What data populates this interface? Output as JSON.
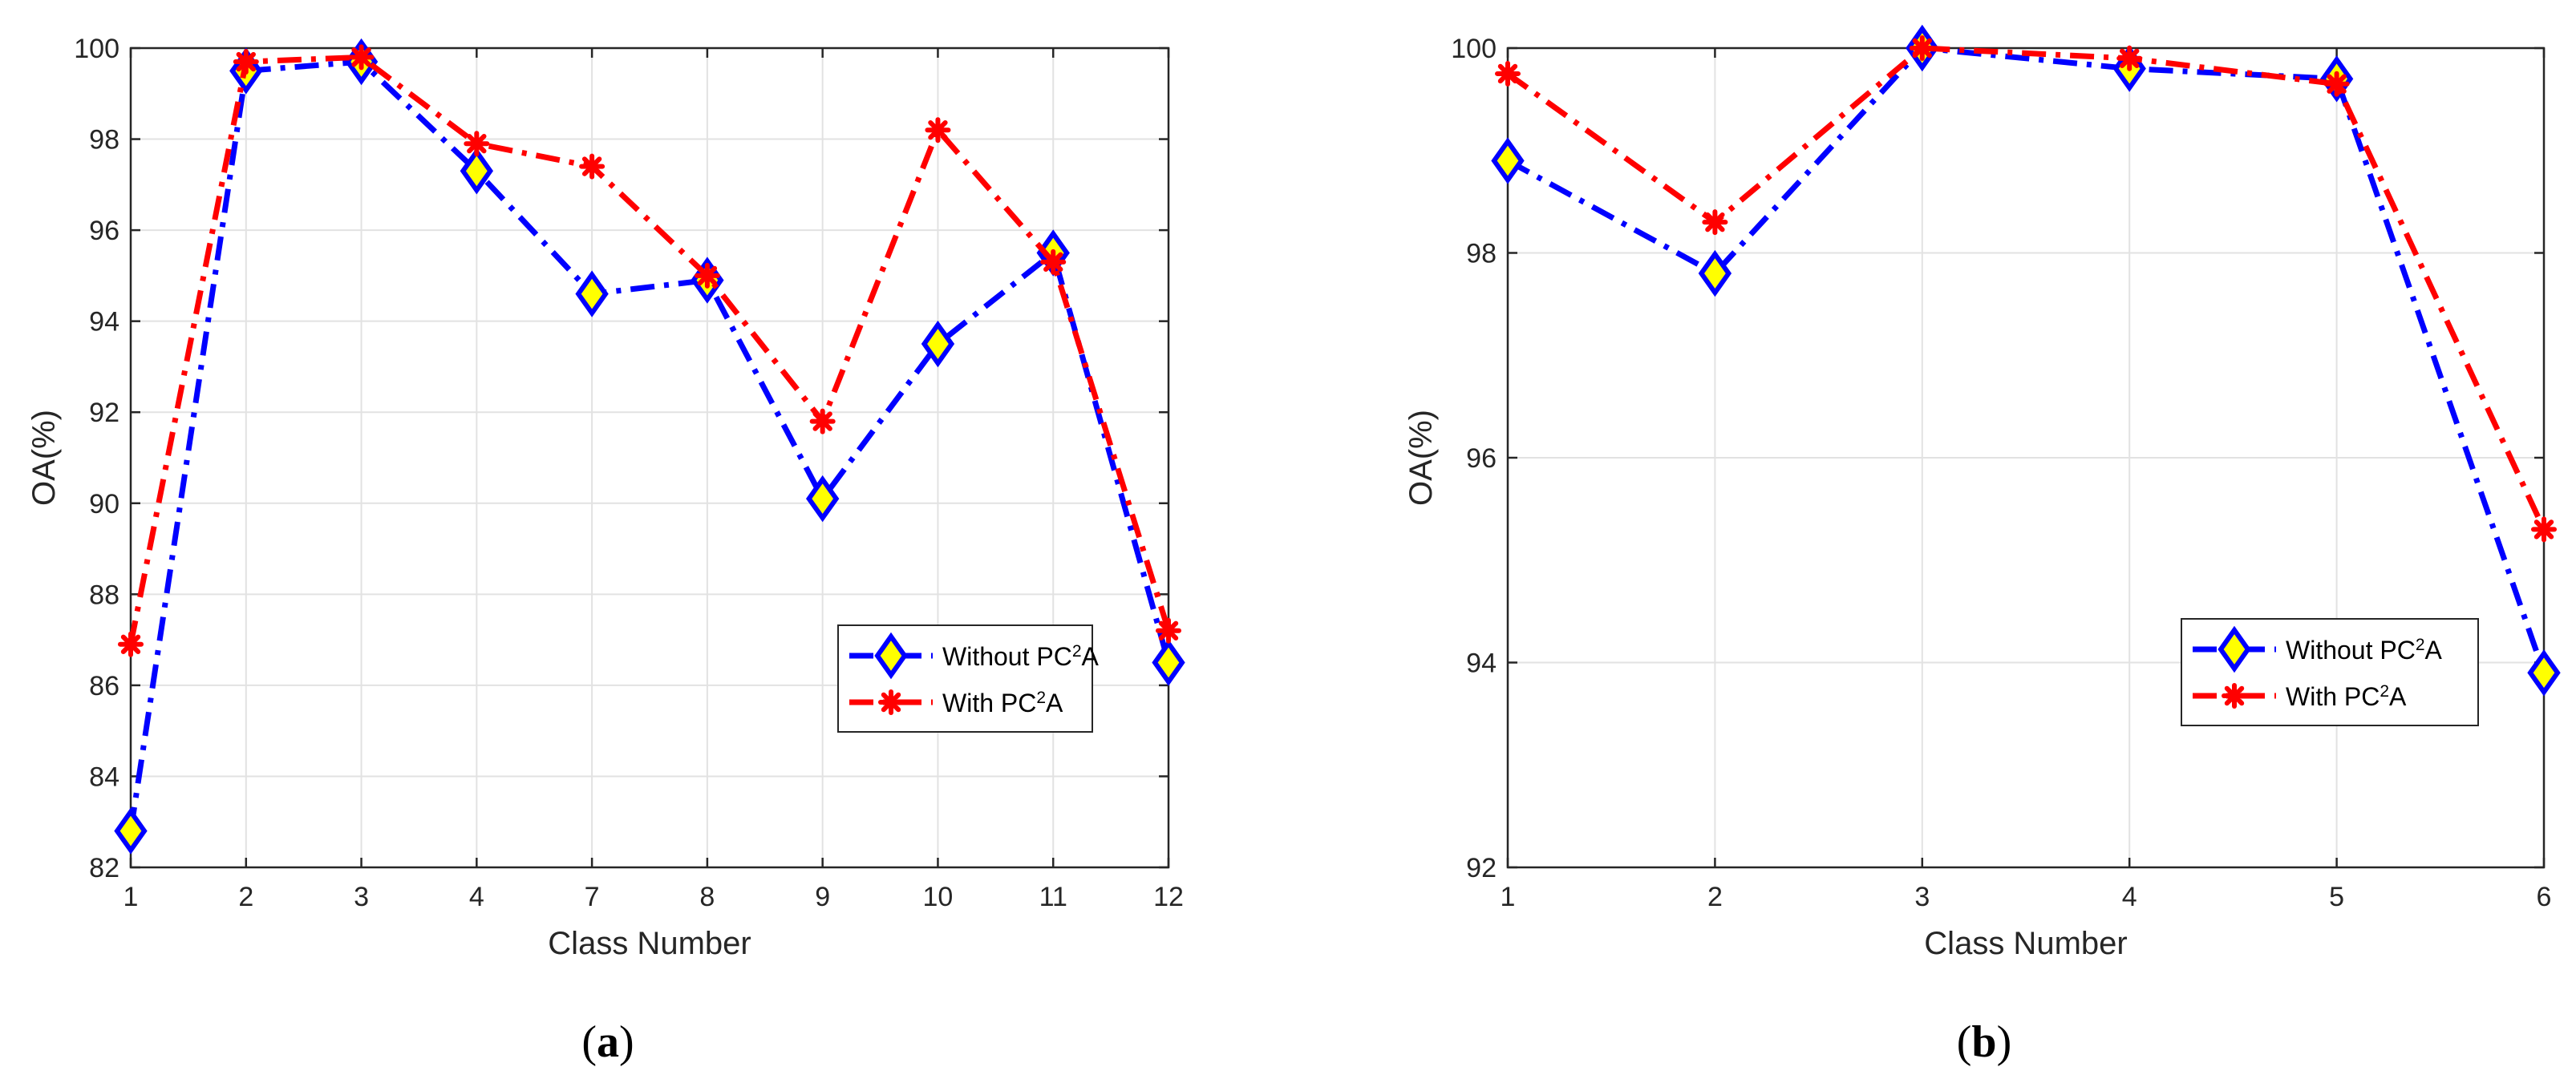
{
  "chart_data": [
    {
      "type": "line",
      "panel_label": "a",
      "categories": [
        "1",
        "2",
        "3",
        "4",
        "7",
        "8",
        "9",
        "10",
        "11",
        "12"
      ],
      "xlabel": "Class Number",
      "ylabel": "OA(%)",
      "ylim": [
        82,
        100
      ],
      "yticks": [
        82,
        84,
        86,
        88,
        90,
        92,
        94,
        96,
        98,
        100
      ],
      "grid": true,
      "legend_position": "lower-right",
      "series": [
        {
          "name_prefix": "Without PC",
          "name_sup": "2",
          "name_suffix": "A",
          "color": "#0000ff",
          "marker": "diamond",
          "marker_fill": "#ffff00",
          "line_style": "dash-dot",
          "values": [
            82.8,
            99.5,
            99.7,
            97.3,
            94.6,
            94.9,
            90.1,
            93.5,
            95.5,
            86.5
          ]
        },
        {
          "name_prefix": "With PC",
          "name_sup": "2",
          "name_suffix": "A",
          "color": "#ff0000",
          "marker": "asterisk",
          "marker_fill": "#ff0000",
          "line_style": "dash-dot",
          "values": [
            86.9,
            99.7,
            99.8,
            97.9,
            97.4,
            95.0,
            91.8,
            98.2,
            95.3,
            87.2
          ]
        }
      ]
    },
    {
      "type": "line",
      "panel_label": "b",
      "categories": [
        "1",
        "2",
        "3",
        "4",
        "5",
        "6"
      ],
      "xlabel": "Class Number",
      "ylabel": "OA(%)",
      "ylim": [
        92,
        100
      ],
      "yticks": [
        92,
        94,
        96,
        98,
        100
      ],
      "grid": true,
      "legend_position": "lower-right",
      "series": [
        {
          "name_prefix": "Without PC",
          "name_sup": "2",
          "name_suffix": "A",
          "color": "#0000ff",
          "marker": "diamond",
          "marker_fill": "#ffff00",
          "line_style": "dash-dot",
          "values": [
            98.9,
            97.8,
            100.0,
            99.8,
            99.7,
            93.9
          ]
        },
        {
          "name_prefix": "With PC",
          "name_sup": "2",
          "name_suffix": "A",
          "color": "#ff0000",
          "marker": "asterisk",
          "marker_fill": "#ff0000",
          "line_style": "dash-dot",
          "values": [
            99.75,
            98.3,
            100.0,
            99.9,
            99.65,
            95.3
          ]
        }
      ]
    }
  ]
}
